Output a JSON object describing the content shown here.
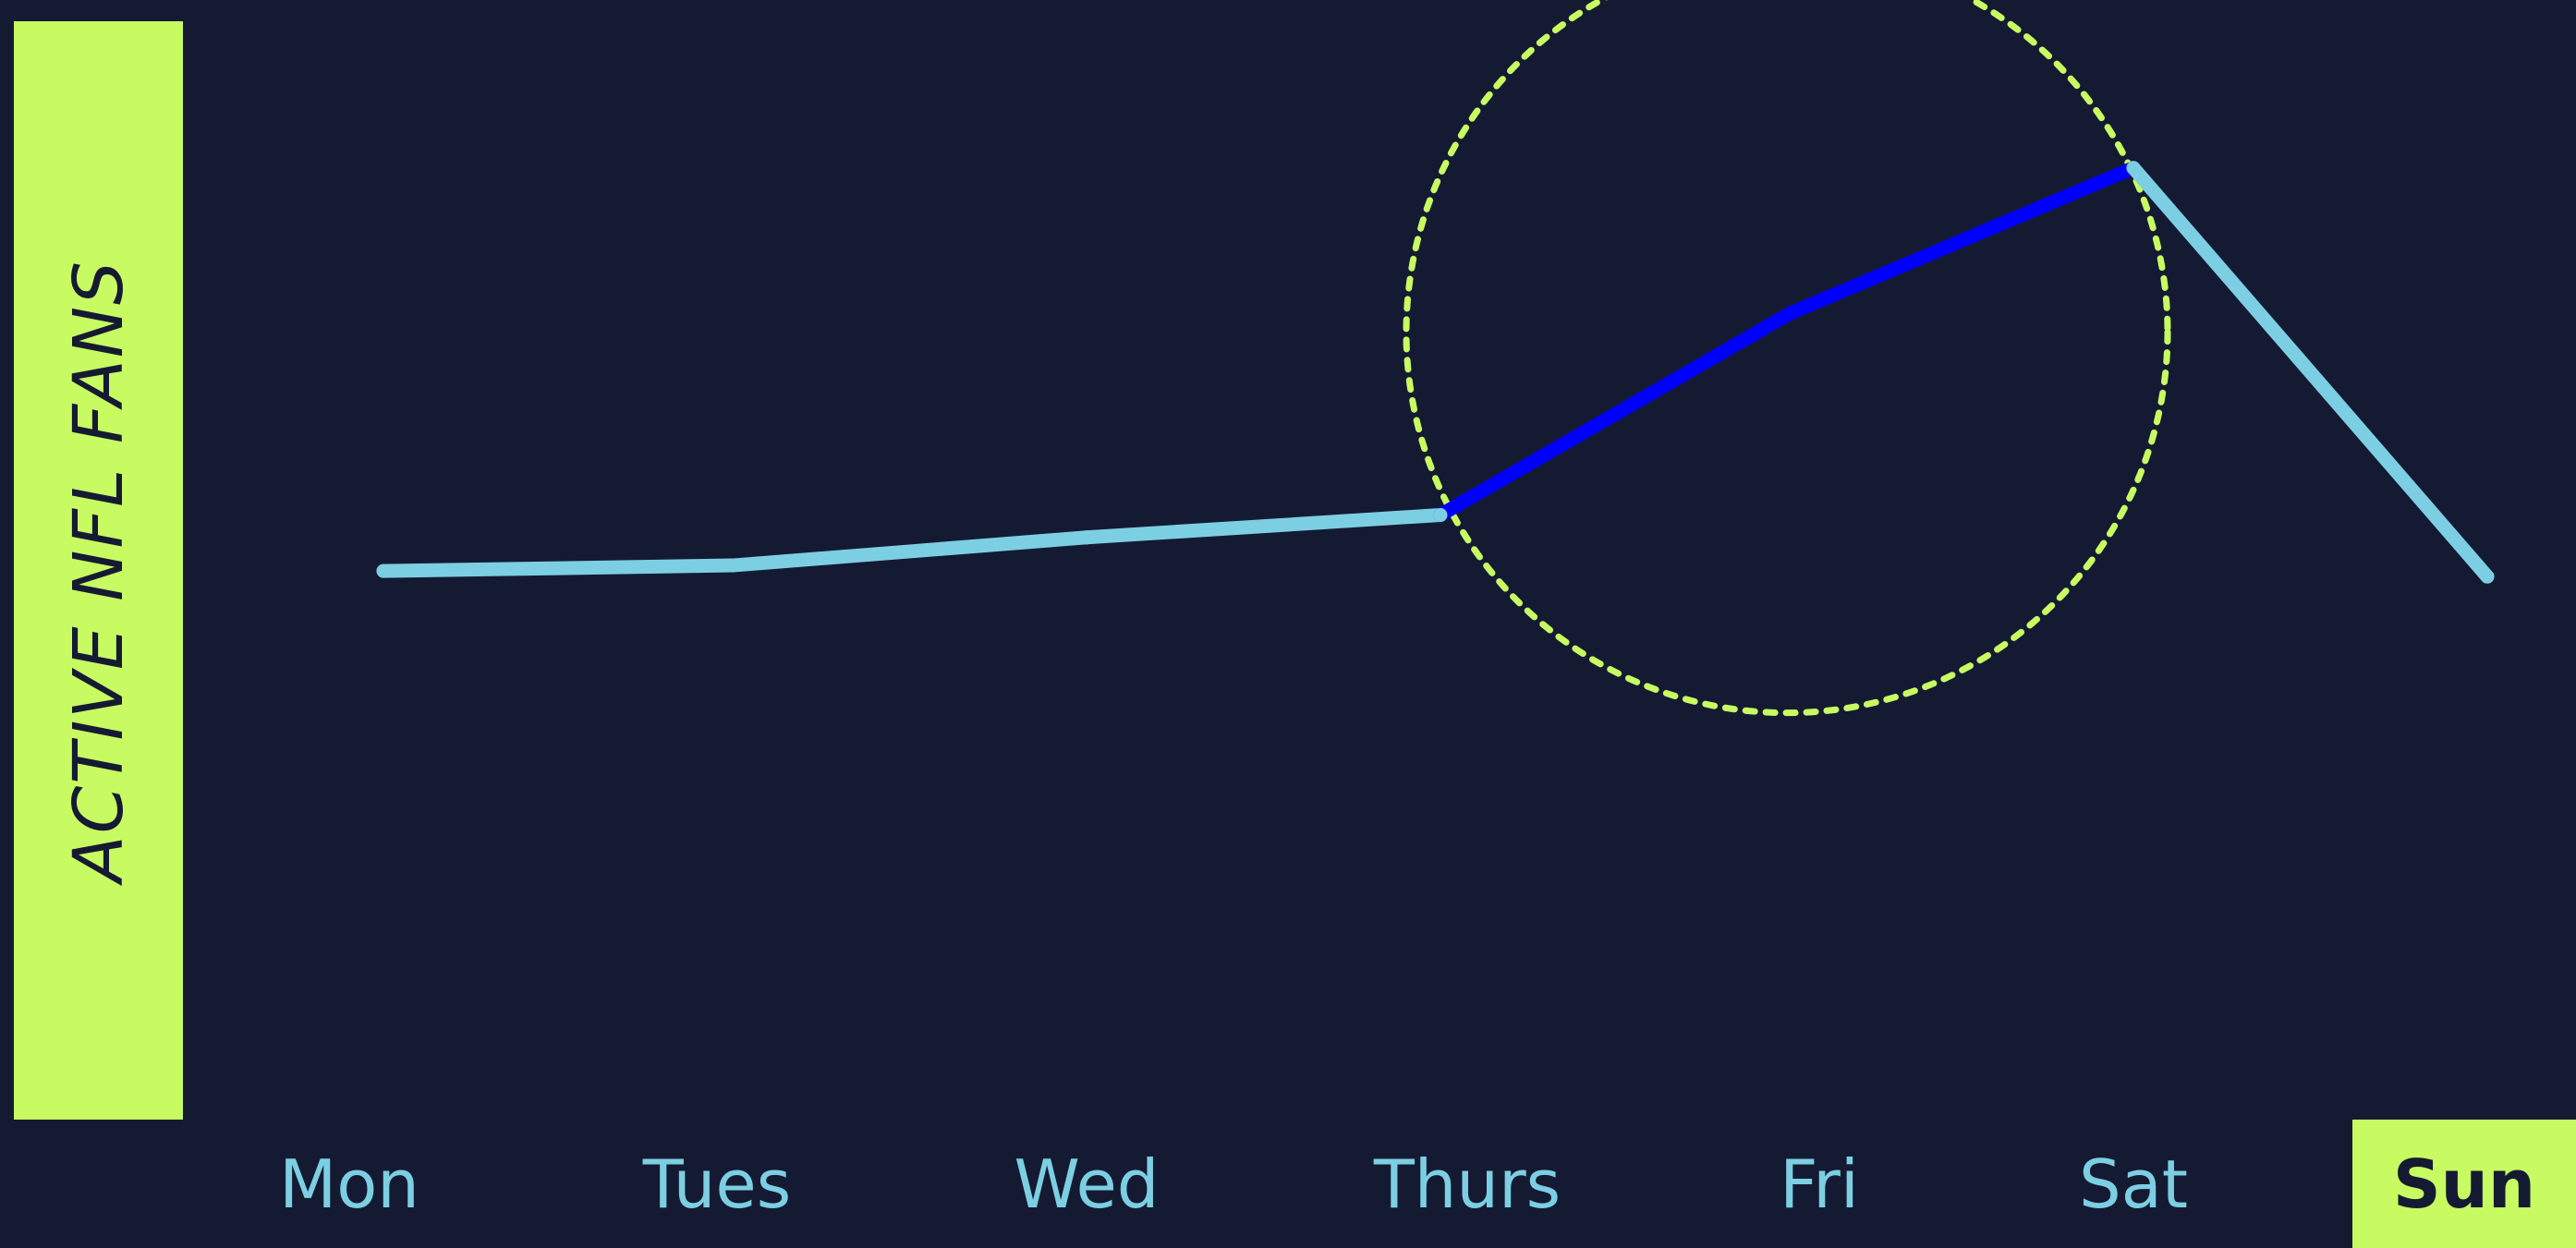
{
  "chart_data": {
    "type": "line",
    "ylabel": "ACTIVE NFL FANS",
    "xlabel": "",
    "categories": [
      "Mon",
      "Tues",
      "Wed",
      "Thurs",
      "Fri",
      "Sat",
      "Sun"
    ],
    "highlighted_category": "Sun",
    "ylim": [
      0,
      100
    ],
    "series": [
      {
        "values": [
          49,
          49.5,
          52,
          54,
          72,
          85,
          48.5
        ],
        "color": "#7ccfe2",
        "highlight_range": [
          "Thurs",
          "Sat"
        ],
        "highlight_color": "#0000ff"
      }
    ],
    "annotation": {
      "type": "dashed-circle",
      "around": [
        "Thurs",
        "Fri",
        "Sat"
      ],
      "color": "#c8fb62"
    },
    "grid": false,
    "legend": "none"
  },
  "colors": {
    "background": "#151a33",
    "accent": "#c8fb62",
    "line": "#7ccfe2",
    "highlight": "#0000ff"
  }
}
